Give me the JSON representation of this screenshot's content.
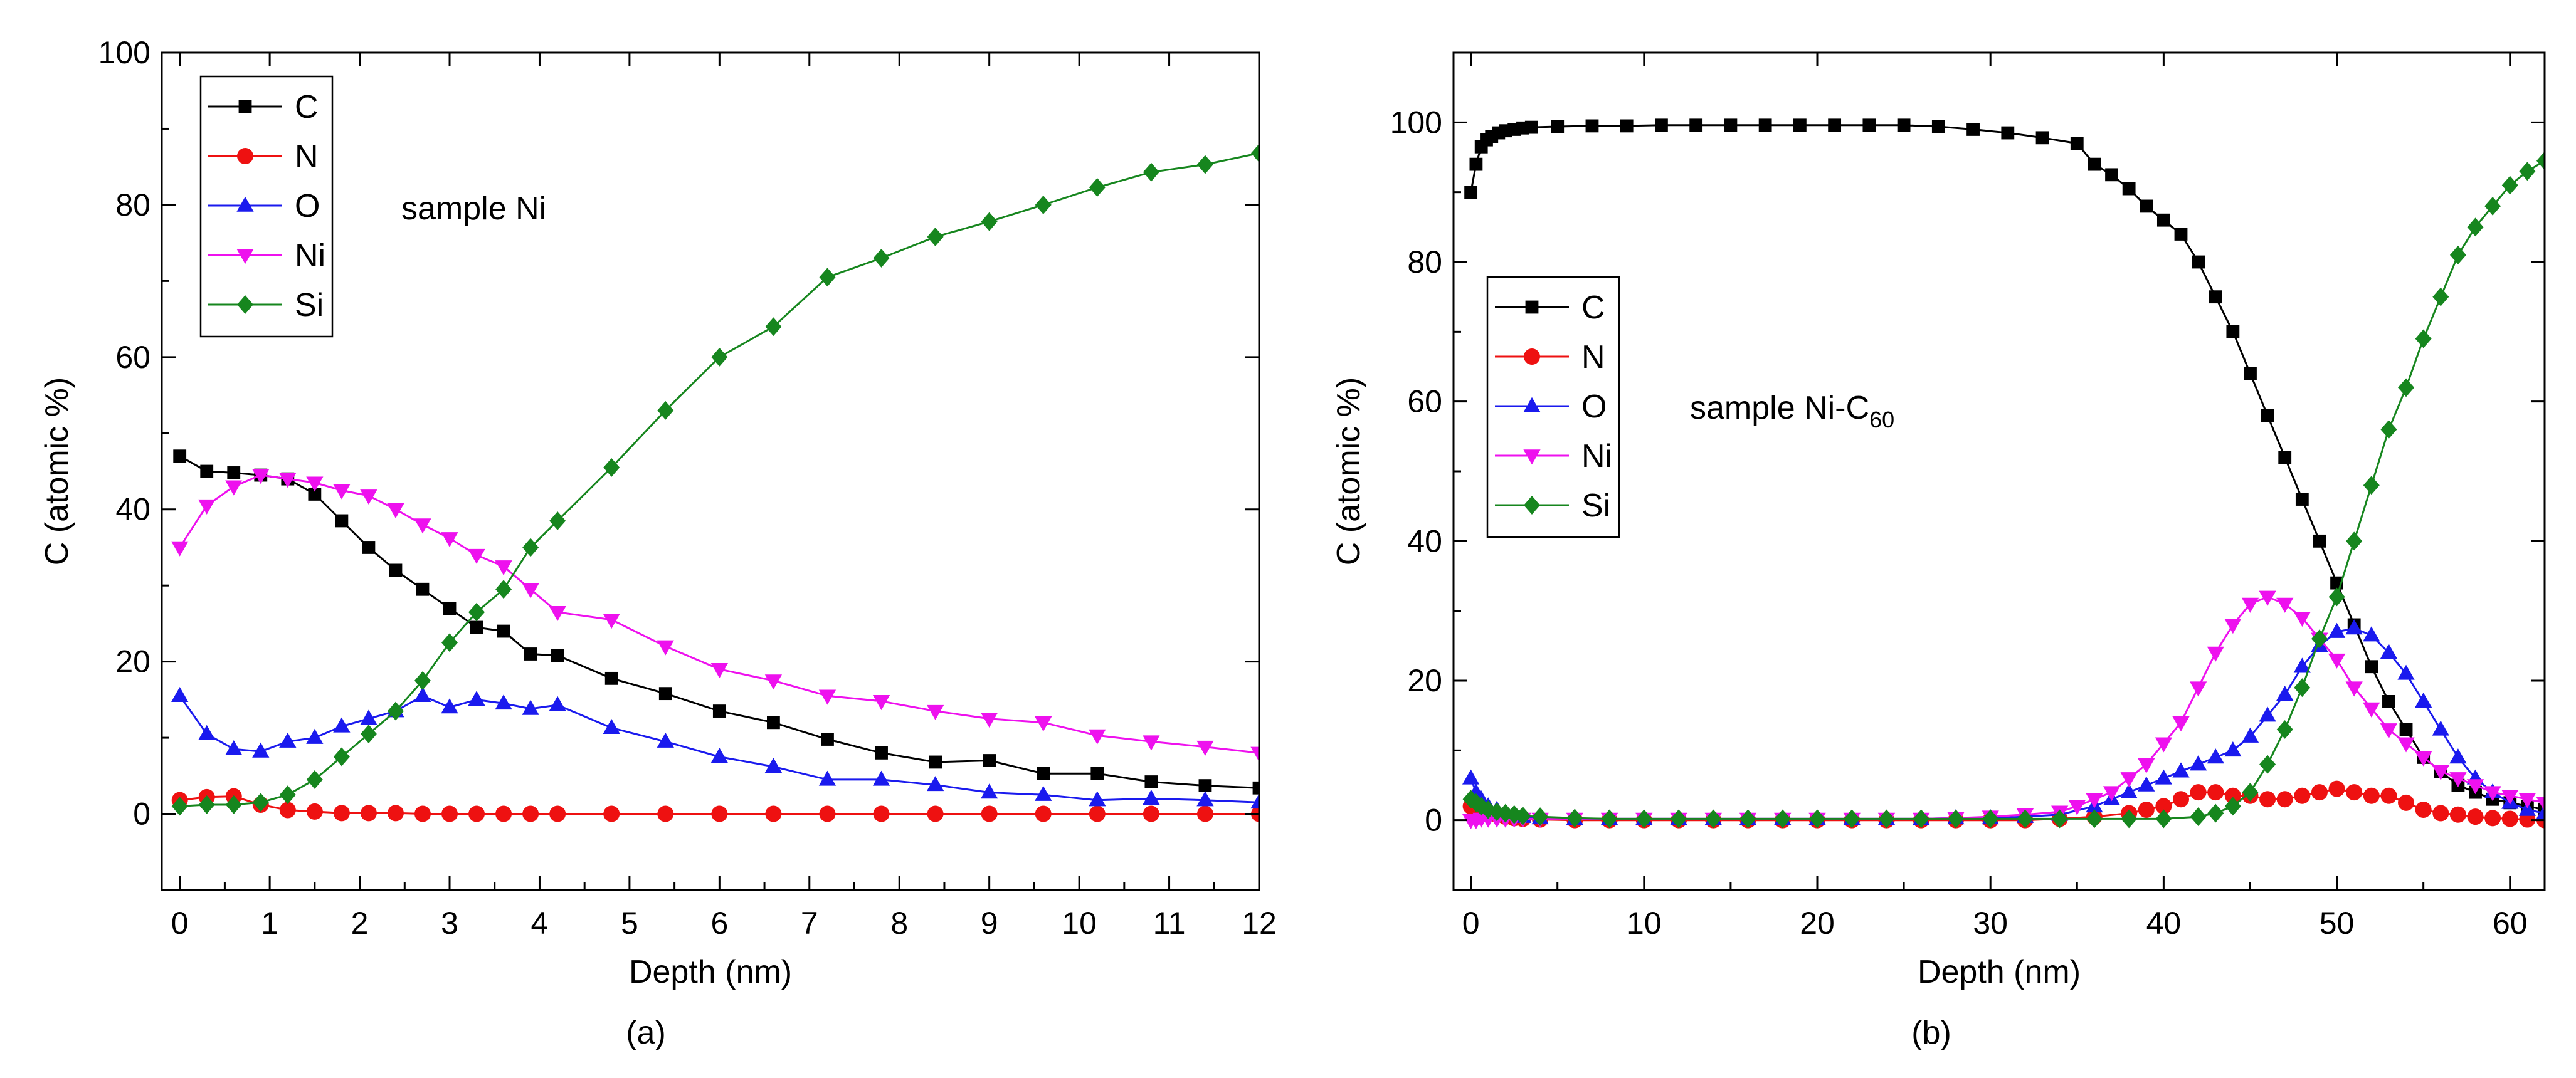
{
  "chart_data": [
    {
      "type": "line",
      "panel_label": "(a)",
      "annotation": "sample Ni",
      "xlabel": "Depth (nm)",
      "ylabel": "C (atomic %)",
      "xlim": [
        -0.2,
        12
      ],
      "ylim": [
        -10,
        100
      ],
      "xticks": [
        0,
        1,
        2,
        3,
        4,
        5,
        6,
        7,
        8,
        9,
        10,
        11,
        12
      ],
      "yticks": [
        0,
        20,
        40,
        60,
        80,
        100
      ],
      "legend": "top-left",
      "series": [
        {
          "name": "C",
          "color": "#000000",
          "marker": "square",
          "x": [
            0,
            0.3,
            0.6,
            0.9,
            1.2,
            1.5,
            1.8,
            2.1,
            2.4,
            2.7,
            3.0,
            3.3,
            3.6,
            3.9,
            4.2,
            4.8,
            5.4,
            6.0,
            6.6,
            7.2,
            7.8,
            8.4,
            9.0,
            9.6,
            10.2,
            10.8,
            11.4,
            12.0
          ],
          "y": [
            47,
            45,
            44.8,
            44.5,
            44,
            42,
            38.5,
            35,
            32,
            29.5,
            27,
            24.5,
            24,
            21,
            20.8,
            17.8,
            15.8,
            13.5,
            12,
            9.8,
            8,
            6.8,
            7,
            5.3,
            5.3,
            4.2,
            3.7,
            3.4
          ]
        },
        {
          "name": "N",
          "color": "#ee1111",
          "marker": "circle",
          "x": [
            0,
            0.3,
            0.6,
            0.9,
            1.2,
            1.5,
            1.8,
            2.1,
            2.4,
            2.7,
            3.0,
            3.3,
            3.6,
            3.9,
            4.2,
            4.8,
            5.4,
            6.0,
            6.6,
            7.2,
            7.8,
            8.4,
            9.0,
            9.6,
            10.2,
            10.8,
            11.4,
            12.0
          ],
          "y": [
            1.8,
            2.2,
            2.3,
            1.2,
            0.5,
            0.3,
            0.1,
            0.1,
            0.1,
            0,
            0,
            0,
            0,
            0,
            0,
            0,
            0,
            0,
            0,
            0,
            0,
            0,
            0,
            0,
            0,
            0,
            0,
            0
          ]
        },
        {
          "name": "O",
          "color": "#1a1aee",
          "marker": "triangle-up",
          "x": [
            0,
            0.3,
            0.6,
            0.9,
            1.2,
            1.5,
            1.8,
            2.1,
            2.4,
            2.7,
            3.0,
            3.3,
            3.6,
            3.9,
            4.2,
            4.8,
            5.4,
            6.0,
            6.6,
            7.2,
            7.8,
            8.4,
            9.0,
            9.6,
            10.2,
            10.8,
            11.4,
            12.0
          ],
          "y": [
            15.5,
            10.5,
            8.5,
            8.2,
            9.5,
            10,
            11.5,
            12.5,
            13.5,
            15.5,
            14,
            15,
            14.5,
            13.8,
            14.3,
            11.3,
            9.5,
            7.5,
            6.2,
            4.5,
            4.5,
            3.8,
            2.8,
            2.5,
            1.8,
            2,
            1.8,
            1.5
          ]
        },
        {
          "name": "Ni",
          "color": "#ee11ee",
          "marker": "triangle-down",
          "x": [
            0,
            0.3,
            0.6,
            0.9,
            1.2,
            1.5,
            1.8,
            2.1,
            2.4,
            2.7,
            3.0,
            3.3,
            3.6,
            3.9,
            4.2,
            4.8,
            5.4,
            6.0,
            6.6,
            7.2,
            7.8,
            8.4,
            9.0,
            9.6,
            10.2,
            10.8,
            11.4,
            12.0
          ],
          "y": [
            35,
            40.5,
            43,
            44.5,
            44,
            43.5,
            42.5,
            41.8,
            40,
            38,
            36.2,
            34,
            32.5,
            29.5,
            26.5,
            25.5,
            22,
            19,
            17.5,
            15.5,
            14.8,
            13.5,
            12.5,
            12,
            10.3,
            9.5,
            8.8,
            8
          ]
        },
        {
          "name": "Si",
          "color": "#16861e",
          "marker": "diamond",
          "x": [
            0,
            0.3,
            0.6,
            0.9,
            1.2,
            1.5,
            1.8,
            2.1,
            2.4,
            2.7,
            3.0,
            3.3,
            3.6,
            3.9,
            4.2,
            4.8,
            5.4,
            6.0,
            6.6,
            7.2,
            7.8,
            8.4,
            9.0,
            9.6,
            10.2,
            10.8,
            11.4,
            12.0
          ],
          "y": [
            1,
            1.2,
            1.2,
            1.5,
            2.5,
            4.5,
            7.5,
            10.5,
            13.5,
            17.5,
            22.5,
            26.5,
            29.5,
            35,
            38.5,
            45.5,
            53,
            60,
            64,
            70.5,
            73,
            75.8,
            77.8,
            80,
            82.3,
            84.3,
            85.3,
            86.8
          ]
        }
      ]
    },
    {
      "type": "line",
      "panel_label": "(b)",
      "annotation": {
        "text": "sample Ni-C",
        "subscript": "60"
      },
      "xlabel": "Depth (nm)",
      "ylabel": "C (atomic %)",
      "xlim": [
        -1,
        62
      ],
      "ylim": [
        -10,
        110
      ],
      "xticks": [
        0,
        10,
        20,
        30,
        40,
        50,
        60
      ],
      "yticks": [
        0,
        20,
        40,
        60,
        80,
        100
      ],
      "legend": "middle-left",
      "series": [
        {
          "name": "C",
          "color": "#000000",
          "marker": "square",
          "x": [
            0,
            0.3,
            0.6,
            0.9,
            1.2,
            1.6,
            2,
            2.5,
            3,
            3.5,
            5,
            7,
            9,
            11,
            13,
            15,
            17,
            19,
            21,
            23,
            25,
            27,
            29,
            31,
            33,
            35,
            36,
            37,
            38,
            39,
            40,
            41,
            42,
            43,
            44,
            45,
            46,
            47,
            48,
            49,
            50,
            51,
            52,
            53,
            54,
            55,
            56,
            57,
            58,
            59,
            60,
            61,
            62
          ],
          "y": [
            90,
            94,
            96.5,
            97.5,
            98,
            98.5,
            98.8,
            99,
            99.2,
            99.3,
            99.4,
            99.5,
            99.5,
            99.6,
            99.6,
            99.6,
            99.6,
            99.6,
            99.6,
            99.6,
            99.6,
            99.4,
            99,
            98.5,
            97.8,
            97,
            94,
            92.5,
            90.5,
            88,
            86,
            84,
            80,
            75,
            70,
            64,
            58,
            52,
            46,
            40,
            34,
            28,
            22,
            17,
            13,
            9,
            7,
            5,
            4,
            3,
            2.5,
            2,
            1.5
          ]
        },
        {
          "name": "N",
          "color": "#ee1111",
          "marker": "circle",
          "x": [
            0,
            0.5,
            1,
            1.5,
            2,
            2.5,
            3,
            4,
            6,
            8,
            10,
            12,
            14,
            16,
            18,
            20,
            22,
            24,
            26,
            28,
            30,
            32,
            34,
            36,
            38,
            39,
            40,
            41,
            42,
            43,
            44,
            45,
            46,
            47,
            48,
            49,
            50,
            51,
            52,
            53,
            54,
            55,
            56,
            57,
            58,
            59,
            60,
            61,
            62
          ],
          "y": [
            2,
            1.5,
            1,
            0.8,
            0.5,
            0.3,
            0.2,
            0.1,
            0,
            0,
            0,
            0,
            0,
            0,
            0,
            0,
            0,
            0,
            0,
            0,
            0,
            0,
            0.2,
            0.5,
            1,
            1.5,
            2,
            3,
            4,
            4,
            3.5,
            3.5,
            3,
            3,
            3.5,
            4,
            4.5,
            4,
            3.5,
            3.5,
            2.5,
            1.5,
            1,
            0.8,
            0.5,
            0.3,
            0.2,
            0.1,
            0
          ]
        },
        {
          "name": "O",
          "color": "#1a1aee",
          "marker": "triangle-up",
          "x": [
            0,
            0.3,
            0.6,
            1,
            1.5,
            2,
            2.5,
            3,
            4,
            6,
            8,
            10,
            12,
            14,
            16,
            18,
            20,
            22,
            24,
            26,
            28,
            30,
            32,
            34,
            36,
            37,
            38,
            39,
            40,
            41,
            42,
            43,
            44,
            45,
            46,
            47,
            48,
            49,
            50,
            51,
            52,
            53,
            54,
            55,
            56,
            57,
            58,
            59,
            60,
            61,
            62
          ],
          "y": [
            6,
            4,
            3,
            2,
            1.5,
            1,
            0.8,
            0.5,
            0.3,
            0.2,
            0.2,
            0.2,
            0.2,
            0.2,
            0.2,
            0.2,
            0.2,
            0.2,
            0.2,
            0.2,
            0.3,
            0.3,
            0.5,
            0.8,
            2,
            3,
            4,
            5,
            6,
            7,
            8,
            9,
            10,
            12,
            15,
            18,
            22,
            25,
            27,
            27.5,
            26.5,
            24,
            21,
            17,
            13,
            9,
            6,
            4,
            2.5,
            1.5,
            1
          ]
        },
        {
          "name": "Ni",
          "color": "#ee11ee",
          "marker": "triangle-down",
          "x": [
            0,
            0.3,
            0.6,
            1,
            1.5,
            2,
            2.5,
            3,
            4,
            6,
            8,
            10,
            12,
            14,
            16,
            18,
            20,
            22,
            24,
            26,
            28,
            30,
            32,
            34,
            35,
            36,
            37,
            38,
            39,
            40,
            41,
            42,
            43,
            44,
            45,
            46,
            47,
            48,
            49,
            50,
            51,
            52,
            53,
            54,
            55,
            56,
            57,
            58,
            59,
            60,
            61,
            62
          ],
          "y": [
            0,
            0,
            0.2,
            0.2,
            0.2,
            0.2,
            0.2,
            0.2,
            0.2,
            0.2,
            0.2,
            0.2,
            0.2,
            0.2,
            0.2,
            0.2,
            0.2,
            0.2,
            0.2,
            0.2,
            0.3,
            0.5,
            0.8,
            1.2,
            2,
            3,
            4,
            6,
            8,
            11,
            14,
            19,
            24,
            28,
            31,
            32,
            31,
            29,
            26,
            23,
            19,
            16,
            13,
            11,
            9,
            7,
            6,
            5,
            4,
            3.5,
            3,
            2.5
          ]
        },
        {
          "name": "Si",
          "color": "#16861e",
          "marker": "diamond",
          "x": [
            0,
            0.3,
            0.6,
            1,
            1.5,
            2,
            2.5,
            3,
            4,
            6,
            8,
            10,
            12,
            14,
            16,
            18,
            20,
            22,
            24,
            26,
            28,
            30,
            32,
            34,
            36,
            38,
            40,
            42,
            43,
            44,
            45,
            46,
            47,
            48,
            49,
            50,
            51,
            52,
            53,
            54,
            55,
            56,
            57,
            58,
            59,
            60,
            61,
            62
          ],
          "y": [
            3,
            2.5,
            2,
            1.5,
            1.2,
            1,
            0.8,
            0.6,
            0.5,
            0.3,
            0.2,
            0.2,
            0.2,
            0.2,
            0.2,
            0.2,
            0.2,
            0.2,
            0.2,
            0.2,
            0.2,
            0.2,
            0.2,
            0.2,
            0.2,
            0.2,
            0.2,
            0.5,
            1,
            2,
            4,
            8,
            13,
            19,
            26,
            32,
            40,
            48,
            56,
            62,
            69,
            75,
            81,
            85,
            88,
            91,
            93,
            94.5
          ]
        }
      ]
    }
  ]
}
